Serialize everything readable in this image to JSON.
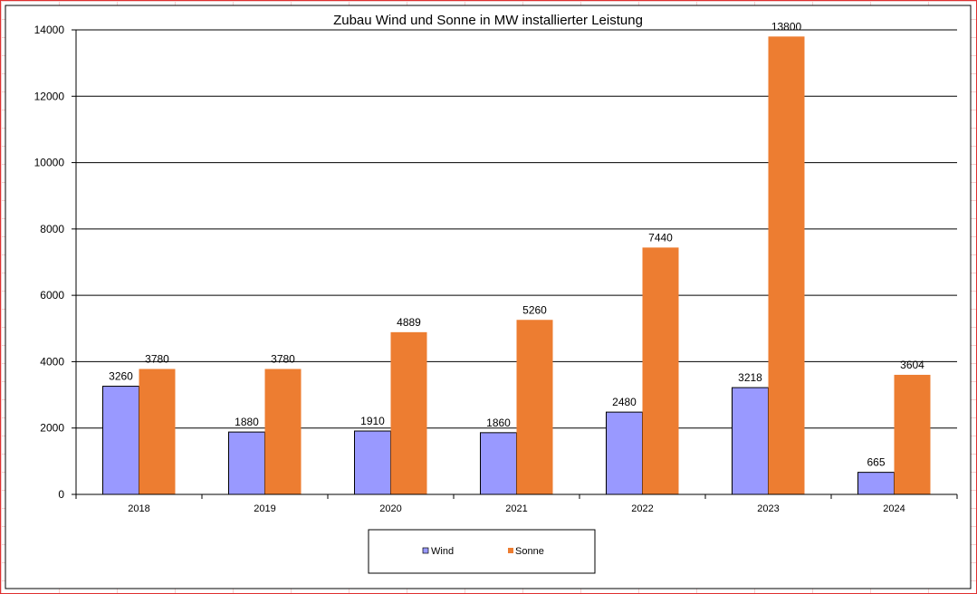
{
  "chart_data": {
    "type": "bar",
    "title": "Zubau Wind und Sonne in MW installierter Leistung",
    "xlabel": "",
    "ylabel": "",
    "categories": [
      "2018",
      "2019",
      "2020",
      "2021",
      "2022",
      "2023",
      "2024"
    ],
    "series": [
      {
        "name": "Wind",
        "color": "#9999FF",
        "values": [
          3260,
          1880,
          1910,
          1860,
          2480,
          3218,
          665
        ]
      },
      {
        "name": "Sonne",
        "color": "#ED7D31",
        "values": [
          3780,
          3780,
          4889,
          5260,
          7440,
          13800,
          3604
        ]
      }
    ],
    "ylim": [
      0,
      14000
    ],
    "yticks": [
      0,
      2000,
      4000,
      6000,
      8000,
      10000,
      12000,
      14000
    ],
    "grid": true,
    "legend": "bottom"
  }
}
